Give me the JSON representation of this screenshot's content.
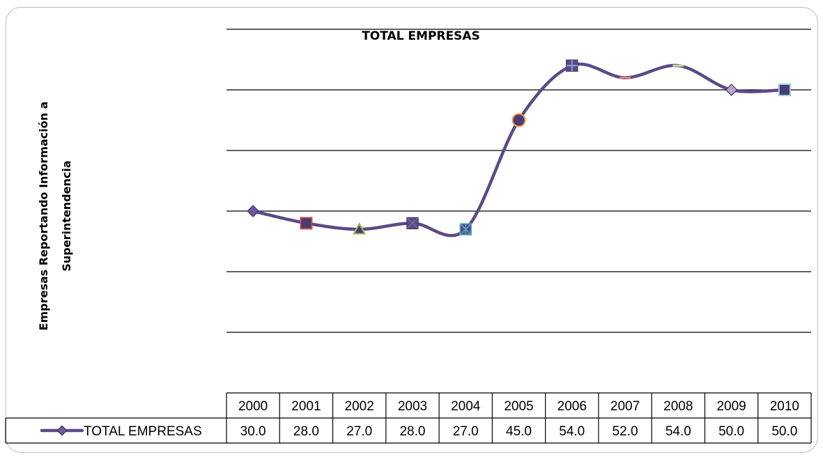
{
  "chart_data": {
    "type": "line",
    "title": "TOTAL EMPRESAS",
    "ylabel": "Empresas Reportando Información a Superintendencia",
    "ylabel_lines": [
      "Empresas Reportando Información a",
      "Superintendencia"
    ],
    "xlabel": "",
    "categories": [
      "2000",
      "2001",
      "2002",
      "2003",
      "2004",
      "2005",
      "2006",
      "2007",
      "2008",
      "2009",
      "2010"
    ],
    "series": [
      {
        "name": "TOTAL EMPRESAS",
        "values": [
          30,
          28,
          27,
          28,
          27,
          45,
          54,
          52,
          54,
          50,
          50
        ],
        "labels": [
          "30.0",
          "28.0",
          "27.0",
          "28.0",
          "27.0",
          "45.0",
          "54.0",
          "52.0",
          "54.0",
          "50.0",
          "50.0"
        ],
        "color": "#5b4a86",
        "markers": [
          "diamond",
          "square",
          "triangle",
          "square-x",
          "x-star",
          "circle",
          "square-plus",
          "dash",
          "dash",
          "diamond",
          "square"
        ],
        "marker_colors": [
          "#6b5a9a",
          "#c0504d",
          "#9bbb59",
          "#7a6a9e",
          "#4bacc6",
          "#f79646",
          "#8ea8d8",
          "#e07a7a",
          "#c4d79b",
          "#b8a8d0",
          "#92cddc"
        ]
      }
    ],
    "ylim": [
      0,
      60
    ],
    "yticks": [
      0,
      10,
      20,
      30,
      40,
      50,
      60
    ],
    "grid": true,
    "smooth": true,
    "data_table": true,
    "legend": "data-table-left"
  }
}
